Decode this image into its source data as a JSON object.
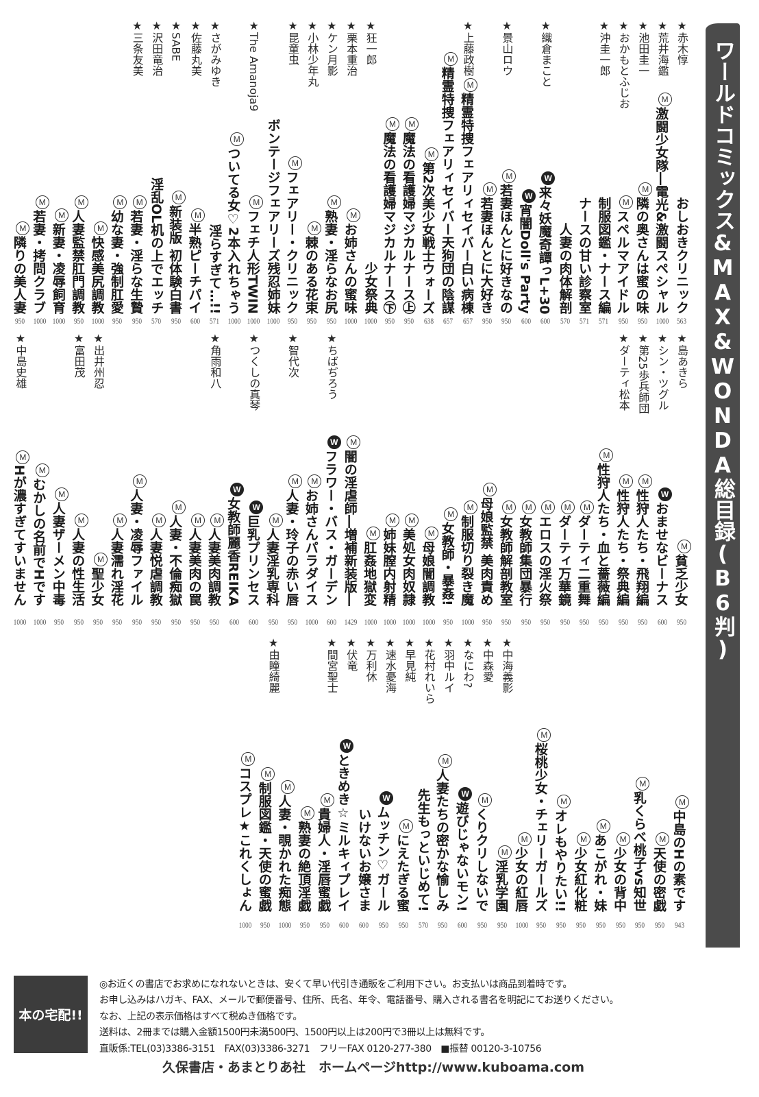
{
  "header": {
    "title": "ワールドコミックス&MAX&WONDA総目録(B6判)"
  },
  "top_section": {
    "columns": [
      {
        "author": "★赤木惇",
        "mark": "",
        "title": "おしおきクリニック",
        "price": "563",
        "author2": "★島あきら"
      },
      {
        "author": "★荒井海鑑",
        "mark": "M",
        "title": "激闘少女隊―電光&激闘スペシャル",
        "price": "1000",
        "author2": "★シン・ツグル"
      },
      {
        "author": "★池田圭一",
        "mark": "M",
        "title": "隣の奥さんは蜜の味",
        "price": "950",
        "author2": "★第25歩兵師団"
      },
      {
        "author": "★おかもとふじお",
        "mark": "M",
        "title": "スペルマアイドル",
        "price": "950",
        "author2": "★ダーティ松本"
      },
      {
        "author": "★沖圭一郎",
        "mark": "",
        "title": "制服図鑑・ナース編",
        "price": "571"
      },
      {
        "mark": "",
        "title": "ナースの甘い診察室",
        "price": "571"
      },
      {
        "mark": "",
        "title": "人妻の肉体解剖",
        "price": "570"
      },
      {
        "author": "★織倉まこと",
        "mark": "W",
        "title": "来々妖魔奇譚っL+30",
        "price": "600"
      },
      {
        "mark": "W",
        "title": "宵闇Doll's Party",
        "price": "600"
      },
      {
        "author": "★景山ロウ",
        "mark": "M",
        "title": "若妻ほんとに好きなの",
        "price": "950"
      },
      {
        "mark": "M",
        "title": "若妻ほんとに大好き",
        "price": "950"
      },
      {
        "author": "★上藤政樹",
        "mark": "M",
        "title": "精霊特捜フェアリィセイバー白い病棟",
        "price": "657"
      },
      {
        "mark": "M",
        "title": "精霊特捜フェアリィセイバー天狗団の陰謀",
        "price": "657"
      },
      {
        "mark": "M",
        "title": "第2次美少女戦士ウォーズ",
        "price": "638"
      },
      {
        "mark": "M",
        "title": "魔法の看護婦マジカルナース㊤",
        "price": "950"
      },
      {
        "mark": "M",
        "title": "魔法の看護婦マジカルナース㊦",
        "price": "950"
      },
      {
        "author": "★狂一郎",
        "mark": "",
        "title": "少女祭典",
        "price": "1000"
      },
      {
        "author": "★栗本重治",
        "mark": "M",
        "title": "お姉さんの蜜味",
        "price": "1000"
      },
      {
        "author": "★ケン月影",
        "mark": "M",
        "title": "熟妻・淫らなお尻",
        "price": "950",
        "author2": "★ちばぢろう"
      },
      {
        "author": "★小林少年丸",
        "mark": "M",
        "title": "棘のある花束",
        "price": "950"
      },
      {
        "author": "★昆童虫",
        "mark": "M",
        "title": "フェアリー・クリニック",
        "price": "950",
        "author2": "★智代次"
      },
      {
        "mark": "",
        "title": "ボンテージフェアリーズ残忍姉妹",
        "price": "1000"
      },
      {
        "author": "★The Amanoja9",
        "mark": "M",
        "title": "フェチ人形TWIN",
        "price": "1000",
        "author2": "★つくしの真琴"
      },
      {
        "mark": "M",
        "title": "ついてる女♡2本入れちゃう",
        "price": "1000"
      },
      {
        "author": "★さがみゆき",
        "mark": "",
        "title": "淫らすぎて…!!",
        "price": "571",
        "author2": "★角雨和八"
      },
      {
        "author": "★佐藤丸美",
        "mark": "M",
        "title": "半熟ピーチパイ",
        "price": "600"
      },
      {
        "author": "★SABE",
        "mark": "M",
        "title": "新装版 初体験白書",
        "price": "950"
      },
      {
        "author": "★沢田竜治",
        "mark": "",
        "title": "淫乱OL机の上でエッチ",
        "price": "570"
      },
      {
        "author": "★三条友美",
        "mark": "M",
        "title": "若妻・淫らな生贄",
        "price": "950"
      },
      {
        "mark": "M",
        "title": "幼な妻・強制肛愛",
        "price": "950"
      },
      {
        "mark": "M",
        "title": "快感美尻調教",
        "price": "1000",
        "author2": "★出井州忍"
      },
      {
        "mark": "M",
        "title": "人妻監禁肛門調教",
        "price": "950",
        "author2": "★富田茂"
      },
      {
        "mark": "M",
        "title": "新妻・凌辱飼育",
        "price": "1000"
      },
      {
        "mark": "M",
        "title": "若妻・拷問クラブ",
        "price": "1000"
      },
      {
        "mark": "M",
        "title": "隣りの美人妻",
        "price": "950",
        "author2": "★中島史雄"
      }
    ]
  },
  "middle_section": {
    "columns": [
      {
        "mark": "M",
        "title": "貧乏少女",
        "price": "950"
      },
      {
        "mark": "W",
        "title": "おませなビーナス",
        "price": "600"
      },
      {
        "mark": "M",
        "title": "性狩人たち・飛翔編",
        "price": "950"
      },
      {
        "mark": "M",
        "title": "性狩人たち・祭典編",
        "price": "950"
      },
      {
        "mark": "M",
        "title": "性狩人たち・血と薔薇編",
        "price": "950"
      },
      {
        "mark": "M",
        "title": "ダーティ二重舞",
        "price": "950"
      },
      {
        "mark": "M",
        "title": "ダーティ万華鏡",
        "price": "950"
      },
      {
        "mark": "M",
        "title": "エロスの淫火祭",
        "price": "950"
      },
      {
        "mark": "M",
        "title": "女教師集団暴行",
        "price": "950"
      },
      {
        "mark": "M",
        "title": "女教師解剖教室",
        "price": "950",
        "author2": "★中海義影"
      },
      {
        "mark": "M",
        "title": "母娘監禁 美肉責め",
        "price": "950",
        "author2": "★中森愛"
      },
      {
        "mark": "M",
        "title": "制服切り裂き魔",
        "price": "1000",
        "author2": "★なにわ?"
      },
      {
        "mark": "M",
        "title": "女教師・暴姦!",
        "price": "950",
        "author2": "★羽中ルイ"
      },
      {
        "mark": "M",
        "title": "母娘闇調教",
        "price": "1000",
        "author2": "★花村れいら"
      },
      {
        "mark": "M",
        "title": "美処女肉奴隷",
        "price": "1000",
        "author2": "★早見純"
      },
      {
        "mark": "M",
        "title": "姉妹膣内射精",
        "price": "1000",
        "author2": "★速水憂海"
      },
      {
        "mark": "M",
        "title": "肛姦地獄変",
        "price": "1000",
        "author2": "★万利休"
      },
      {
        "mark": "M",
        "title": "闇の淫虐師―増補新装版―",
        "price": "1429",
        "author2": "★伏竜"
      },
      {
        "mark": "W",
        "title": "フラワー・バス・ガーデン",
        "price": "600",
        "author2": "★間宮聖士"
      },
      {
        "mark": "M",
        "title": "お姉さんパラダイス",
        "price": "1000"
      },
      {
        "mark": "M",
        "title": "人妻・玲子の赤い唇",
        "price": "950"
      },
      {
        "mark": "M",
        "title": "人妻淫乳専科",
        "price": "950",
        "author2": "★由瞳綺麗"
      },
      {
        "mark": "W",
        "title": "巨乳プリンセス",
        "price": "600"
      },
      {
        "mark": "W",
        "title": "女教師麗香REIKA",
        "price": "600"
      },
      {
        "mark": "M",
        "title": "人妻美肉調教",
        "price": "950"
      },
      {
        "mark": "M",
        "title": "人妻美肉の罠",
        "price": "950"
      },
      {
        "mark": "M",
        "title": "人妻・不倫痴獄",
        "price": "950"
      },
      {
        "mark": "M",
        "title": "人妻悦虐調教",
        "price": "950"
      },
      {
        "mark": "M",
        "title": "人妻・凌辱ファイル",
        "price": "950"
      },
      {
        "mark": "M",
        "title": "人妻濡れ淫花",
        "price": "950"
      },
      {
        "mark": "M",
        "title": "聖少女",
        "price": "950"
      },
      {
        "mark": "M",
        "title": "人妻の性生活",
        "price": "950"
      },
      {
        "mark": "M",
        "title": "人妻ザーメン中毒",
        "price": "950"
      },
      {
        "mark": "M",
        "title": "むかしの名前でHです",
        "price": "1000"
      },
      {
        "mark": "M",
        "title": "Hが濃すぎてすいません",
        "price": "1000"
      }
    ]
  },
  "bottom_section": {
    "columns": [
      {
        "mark": "M",
        "title": "中島のHの素です",
        "price": "943"
      },
      {
        "mark": "M",
        "title": "天使の密戯",
        "price": "950"
      },
      {
        "mark": "M",
        "title": "乳くらべ桃子vs知世",
        "price": "950"
      },
      {
        "mark": "M",
        "title": "少女の背中",
        "price": "950"
      },
      {
        "mark": "M",
        "title": "あこがれ・妹",
        "price": "950"
      },
      {
        "mark": "M",
        "title": "少女紅化粧",
        "price": "950"
      },
      {
        "mark": "M",
        "title": "オレもやりたい!!",
        "price": "950"
      },
      {
        "mark": "M",
        "title": "桜桃少女・チェリーガールズ",
        "price": "950"
      },
      {
        "mark": "M",
        "title": "少女の紅唇",
        "price": "1000"
      },
      {
        "mark": "M",
        "title": "淫乳学園",
        "price": "950"
      },
      {
        "mark": "M",
        "title": "くりクリしないで",
        "price": "950"
      },
      {
        "mark": "W",
        "title": "遊びじゃないモン!",
        "price": "600"
      },
      {
        "mark": "M",
        "title": "人妻たちの密かな愉しみ",
        "price": "950"
      },
      {
        "mark": "",
        "title": "先生もっといじめて!",
        "price": "570"
      },
      {
        "mark": "M",
        "title": "にえたぎる蜜",
        "price": "950"
      },
      {
        "mark": "W",
        "title": "ムッチン♡ガール",
        "price": "950"
      },
      {
        "mark": "",
        "title": "いけないお嬢さま",
        "price": "600"
      },
      {
        "mark": "W",
        "title": "ときめき☆ミルキィプレイ",
        "price": "600"
      },
      {
        "mark": "M",
        "title": "貴婦人・淫唇蜜戯",
        "price": "950"
      },
      {
        "mark": "M",
        "title": "熟妻の絶頂淫戯",
        "price": "950"
      },
      {
        "mark": "M",
        "title": "人妻・覗かれた痴態",
        "price": "1000"
      },
      {
        "mark": "M",
        "title": "制服図鑑・天使の蜜戯",
        "price": "950"
      },
      {
        "mark": "M",
        "title": "コスプレ★これくしょん",
        "price": "1000"
      }
    ]
  },
  "footer": {
    "badge": "本の宅配!!",
    "lines": [
      "◎お近くの書店でお求めになれないときは、安くて早い代引き通販をご利用下さい。お支払いは商品到着時です。",
      "お申し込みはハガキ、FAX、メールで郵便番号、住所、氏名、年令、電話番号、購入される書名を明記にてお送りください。",
      "なお、上記の表示価格はすべて税ぬき価格です。",
      "送料は、2冊までは購入金額1500円未満500円、1500円以上は200円で3冊以上は無料です。",
      "直販係:TEL(03)3386-3151　FAX(03)3386-3271　フリーFAX 0120-277-380　■振替 00120-3-10756"
    ],
    "publisher": "久保書店・あまとりあ社　ホームページhttp://www.kuboama.com"
  }
}
